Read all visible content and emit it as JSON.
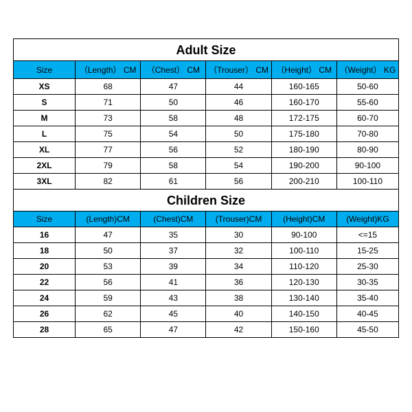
{
  "colors": {
    "header_bg": "#00aeef",
    "border": "#000000",
    "bg": "#ffffff"
  },
  "adult": {
    "title": "Adult Size",
    "columns": [
      "Size",
      "（Length） CM",
      "（Chest） CM",
      "（Trouser） CM",
      "（Height） CM",
      "（Weight） KG"
    ],
    "rows": [
      [
        "XS",
        "68",
        "47",
        "44",
        "160-165",
        "50-60"
      ],
      [
        "S",
        "71",
        "50",
        "46",
        "160-170",
        "55-60"
      ],
      [
        "M",
        "73",
        "58",
        "48",
        "172-175",
        "60-70"
      ],
      [
        "L",
        "75",
        "54",
        "50",
        "175-180",
        "70-80"
      ],
      [
        "XL",
        "77",
        "56",
        "52",
        "180-190",
        "80-90"
      ],
      [
        "2XL",
        "79",
        "58",
        "54",
        "190-200",
        "90-100"
      ],
      [
        "3XL",
        "82",
        "61",
        "56",
        "200-210",
        "100-110"
      ]
    ]
  },
  "children": {
    "title": "Children Size",
    "columns": [
      "Size",
      "(Length)CM",
      "(Chest)CM",
      "(Trouser)CM",
      "(Height)CM",
      "(Weight)KG"
    ],
    "rows": [
      [
        "16",
        "47",
        "35",
        "30",
        "90-100",
        "<=15"
      ],
      [
        "18",
        "50",
        "37",
        "32",
        "100-110",
        "15-25"
      ],
      [
        "20",
        "53",
        "39",
        "34",
        "110-120",
        "25-30"
      ],
      [
        "22",
        "56",
        "41",
        "36",
        "120-130",
        "30-35"
      ],
      [
        "24",
        "59",
        "43",
        "38",
        "130-140",
        "35-40"
      ],
      [
        "26",
        "62",
        "45",
        "40",
        "140-150",
        "40-45"
      ],
      [
        "28",
        "65",
        "47",
        "42",
        "150-160",
        "45-50"
      ]
    ]
  },
  "fontsize": {
    "title_pt": 18,
    "cell_pt": 12
  }
}
